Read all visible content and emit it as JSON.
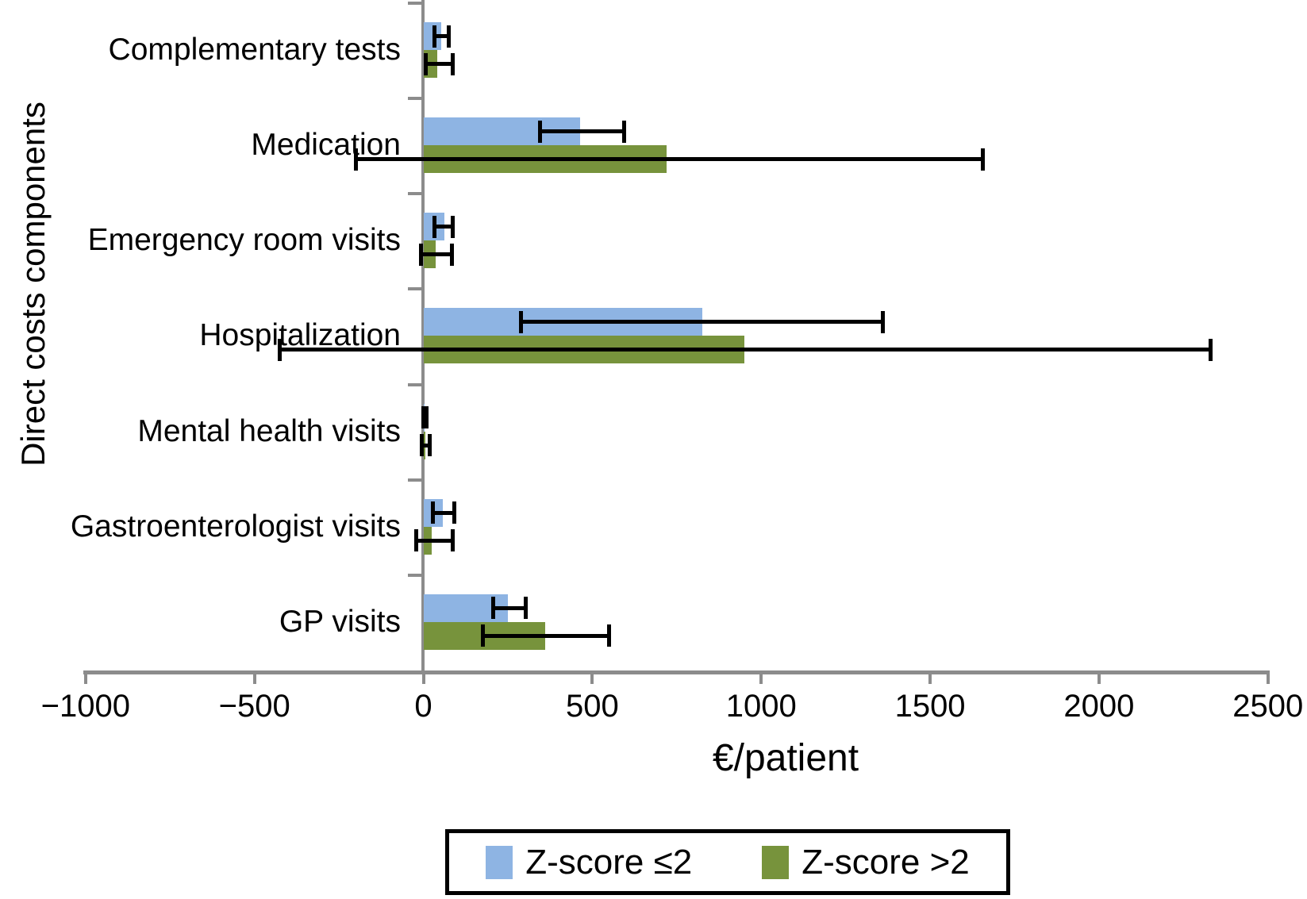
{
  "chart_data": {
    "type": "bar",
    "orientation": "horizontal-grouped",
    "title": "",
    "xlabel": "€/patient",
    "ylabel": "Direct costs components",
    "xlim": [
      -1000,
      2500
    ],
    "xticks": [
      -1000,
      -500,
      0,
      500,
      1000,
      1500,
      2000,
      2500
    ],
    "xtick_labels": [
      "−1000",
      "−500",
      "0",
      "500",
      "1000",
      "1500",
      "2000",
      "2500"
    ],
    "grid": "off",
    "legend_position": "bottom",
    "categories_top_to_bottom": [
      "Complementary tests",
      "Medication",
      "Emergency room visits",
      "Hospitalization",
      "Mental health visits",
      "Gastroenterologist visits",
      "GP visits"
    ],
    "series": [
      {
        "name": "Z-score ≤2",
        "color": "#8EB4E3",
        "values": [
          52,
          465,
          62,
          825,
          2,
          58,
          251
        ],
        "error_low": [
          32,
          345,
          34,
          290,
          0,
          29,
          206
        ],
        "error_high": [
          76,
          595,
          86,
          1360,
          9,
          91,
          303
        ]
      },
      {
        "name": "Z-score >2",
        "color": "#77933C",
        "values": [
          40,
          720,
          36,
          950,
          5,
          25,
          361
        ],
        "error_low": [
          7,
          -200,
          -6,
          -425,
          -4,
          -22,
          176
        ],
        "error_high": [
          87,
          1655,
          85,
          2330,
          18,
          86,
          549
        ]
      }
    ],
    "error_bar_color": "#000000",
    "axis_color": "#8c8c8c"
  }
}
